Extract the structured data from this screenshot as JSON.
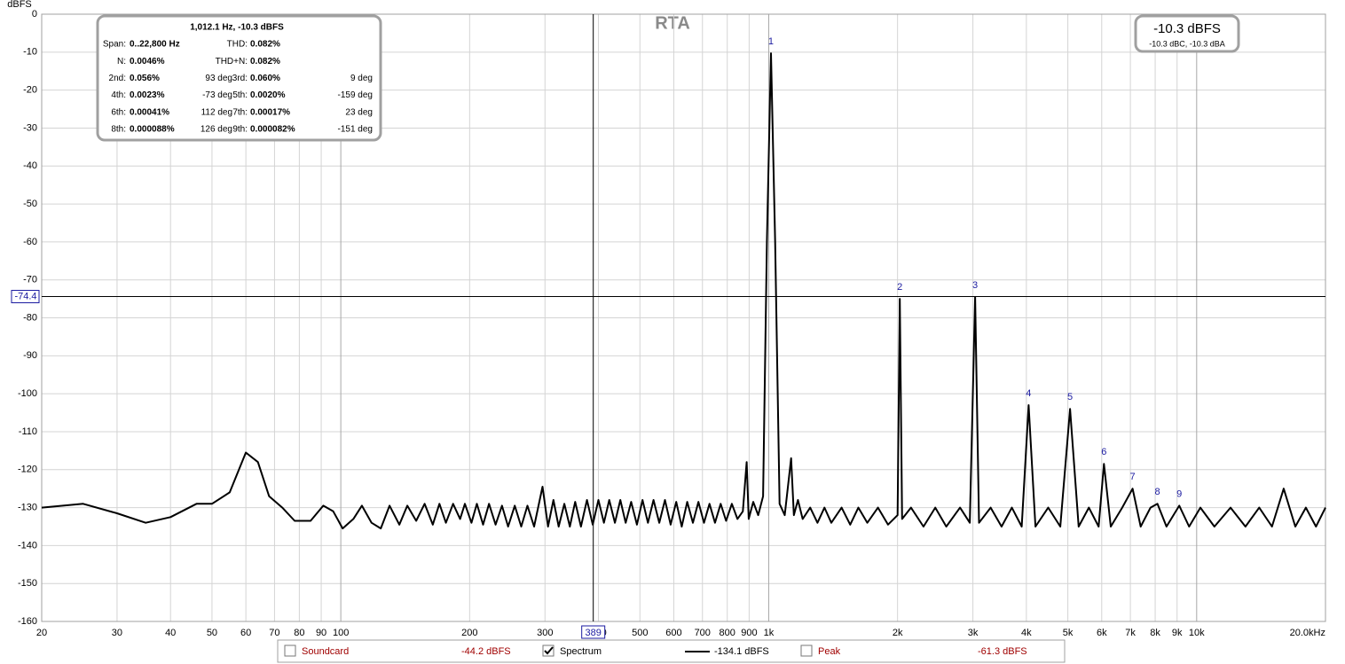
{
  "chart_data": {
    "type": "line",
    "title": "RTA",
    "y_label": "dBFS",
    "xscale": "log",
    "xlim": [
      20,
      20000
    ],
    "ylim": [
      -160,
      0
    ],
    "grid": true,
    "yticks": [
      0,
      -10,
      -20,
      -30,
      -40,
      -50,
      -60,
      -70,
      -80,
      -90,
      -100,
      -110,
      -120,
      -130,
      -140,
      -150,
      -160
    ],
    "xticks": [
      20,
      30,
      40,
      50,
      60,
      70,
      80,
      90,
      100,
      200,
      300,
      400,
      500,
      600,
      700,
      800,
      900,
      {
        "value": 1000,
        "label": "1k"
      },
      {
        "value": 2000,
        "label": "2k"
      },
      {
        "value": 3000,
        "label": "3k"
      },
      {
        "value": 4000,
        "label": "4k"
      },
      {
        "value": 5000,
        "label": "5k"
      },
      {
        "value": 6000,
        "label": "6k"
      },
      {
        "value": 7000,
        "label": "7k"
      },
      {
        "value": 8000,
        "label": "8k"
      },
      {
        "value": 9000,
        "label": "9k"
      },
      {
        "value": 10000,
        "label": "10k"
      },
      {
        "value": 20000,
        "label": "20.0kHz"
      }
    ],
    "x": [
      20,
      25,
      30,
      35,
      40,
      46,
      50,
      55,
      60,
      64,
      68,
      73,
      78,
      85,
      91,
      96,
      101,
      107,
      112,
      118,
      124,
      130,
      137,
      143,
      150,
      157,
      164,
      170,
      176,
      183,
      190,
      195,
      202,
      208,
      215,
      222,
      230,
      238,
      246,
      255,
      264,
      273,
      283,
      296,
      305,
      314,
      323,
      333,
      343,
      353,
      364,
      376,
      388,
      400,
      412,
      424,
      437,
      450,
      463,
      477,
      492,
      507,
      522,
      538,
      555,
      572,
      590,
      608,
      626,
      645,
      665,
      685,
      706,
      727,
      749,
      772,
      795,
      820,
      845,
      870,
      888,
      898,
      920,
      945,
      970,
      990,
      1012,
      1035,
      1060,
      1090,
      1128,
      1145,
      1170,
      1200,
      1250,
      1300,
      1350,
      1400,
      1480,
      1550,
      1620,
      1700,
      1800,
      1900,
      2000,
      2024,
      2050,
      2150,
      2300,
      2450,
      2600,
      2800,
      2950,
      3036,
      3100,
      3300,
      3500,
      3700,
      3900,
      4048,
      4200,
      4500,
      4800,
      5060,
      5300,
      5600,
      5900,
      6072,
      6300,
      6700,
      7084,
      7400,
      7800,
      8096,
      8500,
      9108,
      9600,
      10200,
      11000,
      12000,
      13000,
      14000,
      15000,
      15970,
      17000,
      18000,
      19000,
      20000
    ],
    "series": [
      {
        "name": "Spectrum",
        "color": "#000000",
        "checked": true,
        "reading": "-134.1 dBFS",
        "values": [
          -130,
          -129,
          -131.5,
          -134,
          -132.5,
          -129,
          -129,
          -126,
          -115.5,
          -118,
          -127,
          -130,
          -133.5,
          -133.5,
          -129.5,
          -131,
          -135.5,
          -133,
          -129.5,
          -134,
          -135.5,
          -129.5,
          -134.5,
          -129.5,
          -133.5,
          -129,
          -134.5,
          -129,
          -134,
          -129,
          -133,
          -129,
          -134,
          -129,
          -134.5,
          -129,
          -134.5,
          -129.5,
          -135,
          -129.5,
          -135,
          -129.5,
          -135,
          -124.5,
          -135,
          -128,
          -135,
          -129,
          -135,
          -128.5,
          -135,
          -128,
          -134.5,
          -128,
          -134,
          -128,
          -134,
          -128,
          -134,
          -128.5,
          -134.5,
          -128,
          -134,
          -128,
          -134,
          -128,
          -134.5,
          -128.5,
          -135,
          -128.5,
          -134,
          -128.5,
          -134,
          -129,
          -134,
          -129,
          -133.5,
          -129,
          -133,
          -131,
          -118,
          -133,
          -128.5,
          -132,
          -127,
          -60,
          -10.3,
          -60,
          -129,
          -132,
          -117,
          -132,
          -128,
          -133,
          -130,
          -134,
          -130,
          -134,
          -130,
          -134.5,
          -130,
          -134,
          -130,
          -134.5,
          -132,
          -75,
          -133,
          -130,
          -135,
          -130,
          -135,
          -130,
          -134,
          -74.5,
          -134,
          -130,
          -135,
          -130,
          -135,
          -103,
          -135,
          -130,
          -135,
          -104,
          -135,
          -130,
          -135,
          -118.5,
          -135,
          -130,
          -125,
          -135,
          -130,
          -129,
          -135,
          -129.5,
          -135,
          -130,
          -135,
          -130,
          -135,
          -130,
          -135,
          -125,
          -135,
          -130,
          -135,
          -130
        ]
      }
    ],
    "channels": [
      {
        "name": "Soundcard",
        "checked": false,
        "reading": "-44.2 dBFS",
        "color": "#a00000"
      },
      {
        "name": "Peak",
        "checked": false,
        "reading": "-61.3 dBFS",
        "color": "#a00000"
      }
    ],
    "cursor": {
      "x": 389,
      "y": -74.4
    },
    "annotations": [
      {
        "label": "1",
        "x": 1012,
        "y": -10.3
      },
      {
        "label": "2",
        "x": 2024,
        "y": -75
      },
      {
        "label": "3",
        "x": 3036,
        "y": -74.5
      },
      {
        "label": "4",
        "x": 4048,
        "y": -103
      },
      {
        "label": "5",
        "x": 5060,
        "y": -104
      },
      {
        "label": "6",
        "x": 6072,
        "y": -118.5
      },
      {
        "label": "7",
        "x": 7084,
        "y": -125
      },
      {
        "label": "8",
        "x": 8096,
        "y": -129
      },
      {
        "label": "9",
        "x": 9108,
        "y": -129.5
      }
    ],
    "level": {
      "main": "-10.3 dBFS",
      "sub": "-10.3 dBC, -10.3 dBA"
    },
    "info": {
      "title": "1,012.1 Hz, -10.3 dBFS",
      "rows": [
        [
          {
            "label": "Span:",
            "value": "0..22,800 Hz"
          },
          {
            "label": "THD:",
            "value": "0.082%"
          }
        ],
        [
          {
            "label": "N:",
            "value": "0.0046%"
          },
          {
            "label": "THD+N:",
            "value": "0.082%"
          }
        ],
        [
          {
            "label": "2nd:",
            "value": "0.056%",
            "phase": "93 deg"
          },
          {
            "label": "3rd:",
            "value": "0.060%",
            "phase": "9 deg"
          }
        ],
        [
          {
            "label": "4th:",
            "value": "0.0023%",
            "phase": "-73 deg"
          },
          {
            "label": "5th:",
            "value": "0.0020%",
            "phase": "-159 deg"
          }
        ],
        [
          {
            "label": "6th:",
            "value": "0.00041%",
            "phase": "112 deg"
          },
          {
            "label": "7th:",
            "value": "0.00017%",
            "phase": "23 deg"
          }
        ],
        [
          {
            "label": "8th:",
            "value": "0.000088%",
            "phase": "126 deg"
          },
          {
            "label": "9th:",
            "value": "0.000082%",
            "phase": "-151 deg"
          }
        ]
      ]
    }
  }
}
